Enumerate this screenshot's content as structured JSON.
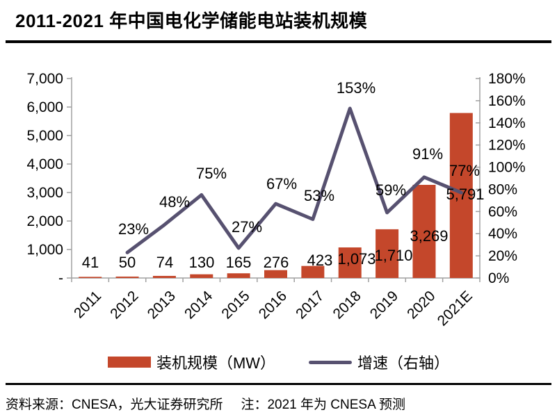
{
  "title": "2011-2021 年中国电化学储能电站装机规模",
  "footer": {
    "source": "资料来源：CNESA，光大证券研究所",
    "note": "注：2021 年为 CNESA 预测"
  },
  "legend": [
    {
      "label": "装机规模（MW）",
      "type": "bar",
      "color": "#C4472B"
    },
    {
      "label": "增速（右轴）",
      "type": "line",
      "color": "#575170"
    }
  ],
  "colors": {
    "bar": "#C4472B",
    "line": "#575170",
    "axis": "#A0A0A0",
    "text": "#000000"
  },
  "chart_data": {
    "type": "bar",
    "subtype": "bar+line combo, dual axis",
    "categories": [
      "2011",
      "2012",
      "2013",
      "2014",
      "2015",
      "2016",
      "2017",
      "2018",
      "2019",
      "2020",
      "2021E"
    ],
    "series": [
      {
        "name": "装机规模（MW）",
        "type": "bar",
        "axis": "left",
        "values": [
          41,
          50,
          74,
          130,
          165,
          276,
          423,
          1073,
          1710,
          3269,
          5791
        ],
        "labels": [
          "41",
          "50",
          "74",
          "130",
          "165",
          "276",
          "423",
          "1,073",
          "1,710",
          "3,269",
          "5,791"
        ]
      },
      {
        "name": "增速（右轴）",
        "type": "line",
        "axis": "right",
        "values": [
          null,
          0.23,
          0.48,
          0.75,
          0.27,
          0.67,
          0.53,
          1.53,
          0.59,
          0.91,
          0.77
        ],
        "labels": [
          "",
          "23%",
          "48%",
          "75%",
          "27%",
          "67%",
          "53%",
          "153%",
          "59%",
          "91%",
          "77%"
        ]
      }
    ],
    "left_axis": {
      "min": 0,
      "max": 7000,
      "step": 1000,
      "tick_labels": [
        "-",
        "1,000",
        "2,000",
        "3,000",
        "4,000",
        "5,000",
        "6,000",
        "7,000"
      ]
    },
    "right_axis": {
      "min": 0,
      "max": 1.8,
      "step": 0.2,
      "tick_labels": [
        "0%",
        "20%",
        "40%",
        "60%",
        "80%",
        "100%",
        "120%",
        "140%",
        "160%",
        "180%"
      ]
    },
    "grid": false,
    "legend_position": "bottom"
  }
}
